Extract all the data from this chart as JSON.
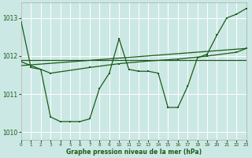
{
  "title": "Graphe pression niveau de la mer (hPa)",
  "bg_color": "#cce8e4",
  "grid_color": "#ffffff",
  "line_color": "#1a5c1a",
  "xlim": [
    0,
    23
  ],
  "ylim": [
    1009.8,
    1013.4
  ],
  "yticks": [
    1010,
    1011,
    1012,
    1013
  ],
  "ytick_labels": [
    "1010",
    "1011",
    "1012",
    "1013"
  ],
  "xticks": [
    0,
    1,
    2,
    3,
    4,
    5,
    6,
    7,
    8,
    9,
    10,
    11,
    12,
    13,
    14,
    15,
    16,
    17,
    18,
    19,
    20,
    21,
    22,
    23
  ],
  "series1_x": [
    0,
    1,
    2,
    3,
    4,
    5,
    6,
    7,
    8,
    9,
    10,
    11,
    12,
    13,
    14,
    15,
    16,
    17,
    18,
    19,
    20,
    21,
    22,
    23
  ],
  "series1_y": [
    1012.9,
    1011.7,
    1011.65,
    1010.4,
    1010.28,
    1010.28,
    1010.28,
    1010.35,
    1011.15,
    1011.55,
    1012.45,
    1011.65,
    1011.6,
    1011.6,
    1011.55,
    1010.65,
    1010.65,
    1011.2,
    1011.95,
    1012.05,
    1012.55,
    1013.0,
    1013.1,
    1013.25
  ],
  "series2_x": [
    0,
    23
  ],
  "series2_y": [
    1011.9,
    1011.9
  ],
  "series3_x": [
    0,
    3,
    7,
    10,
    13,
    16,
    19,
    22,
    23
  ],
  "series3_y": [
    1011.85,
    1011.55,
    1011.7,
    1011.8,
    1011.87,
    1011.92,
    1012.0,
    1012.1,
    1012.2
  ],
  "series4_x": [
    0,
    23
  ],
  "series4_y": [
    1011.75,
    1012.2
  ]
}
